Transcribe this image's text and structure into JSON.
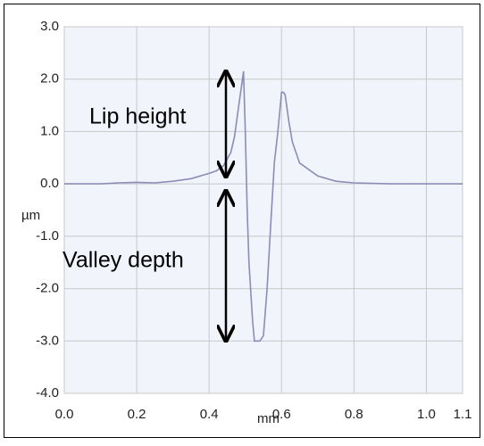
{
  "chart_data": {
    "type": "line",
    "x_label": "mm",
    "y_label": "µm",
    "annotations": [
      "Lip height",
      "Valley depth"
    ],
    "series": [
      {
        "color": "#8c8cb8",
        "x": [
          0.0,
          0.05,
          0.1,
          0.15,
          0.2,
          0.25,
          0.3,
          0.35,
          0.4,
          0.42,
          0.44,
          0.46,
          0.47,
          0.48,
          0.49,
          0.495,
          0.5,
          0.505,
          0.51,
          0.52,
          0.525,
          0.54,
          0.55,
          0.56,
          0.57,
          0.58,
          0.59,
          0.6,
          0.605,
          0.61,
          0.62,
          0.63,
          0.65,
          0.7,
          0.75,
          0.8,
          0.9,
          1.0,
          1.1
        ],
        "values": [
          0,
          0,
          0,
          0.02,
          0.03,
          0.02,
          0.05,
          0.1,
          0.2,
          0.25,
          0.35,
          0.6,
          0.9,
          1.4,
          1.9,
          2.15,
          1.0,
          -0.5,
          -1.5,
          -2.6,
          -3.0,
          -3.0,
          -2.9,
          -2.0,
          -0.8,
          0.4,
          1.0,
          1.75,
          1.75,
          1.7,
          1.2,
          0.8,
          0.4,
          0.15,
          0.05,
          0.02,
          0,
          0,
          0
        ]
      }
    ],
    "xlim": [
      0,
      1.1
    ],
    "ylim": [
      -4,
      3
    ],
    "xticks": [
      {
        "value": 0,
        "label": "0.0"
      },
      0.2,
      0.4,
      0.6,
      0.8,
      {
        "value": 1,
        "label": "1.0"
      },
      1.1
    ],
    "yticks": [
      {
        "value": 3,
        "label": "3.0"
      },
      {
        "value": 2,
        "label": "2.0"
      },
      {
        "value": 1,
        "label": "1.0"
      },
      {
        "value": 0,
        "label": "0.0"
      },
      {
        "value": -1,
        "label": "-1.0"
      },
      {
        "value": -2,
        "label": "-2.0"
      },
      {
        "value": -3,
        "label": "-3.0"
      },
      {
        "value": -4,
        "label": "-4.0"
      }
    ],
    "grid": true
  }
}
